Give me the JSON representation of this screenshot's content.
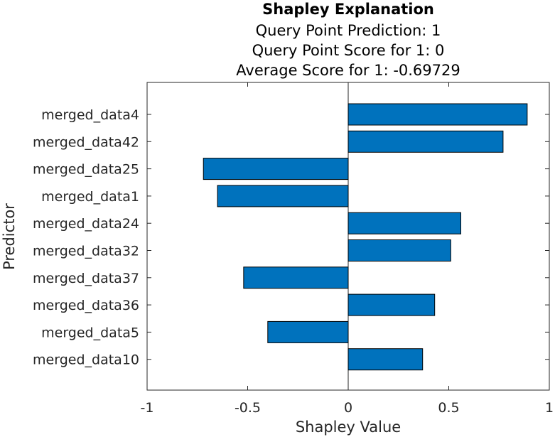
{
  "chart_data": {
    "type": "bar",
    "orientation": "horizontal",
    "title": "Shapley Explanation",
    "subtitle_lines": [
      "Query Point Prediction: 1",
      "Query Point Score for 1: 0",
      "Average Score for 1: -0.69729"
    ],
    "xlabel": "Shapley Value",
    "ylabel": "Predictor",
    "xlim": [
      -1,
      1
    ],
    "xticks": [
      "-1",
      "-0.5",
      "0",
      "0.5",
      "1"
    ],
    "xtick_values": [
      -1,
      -0.5,
      0,
      0.5,
      1
    ],
    "categories": [
      "merged_data4",
      "merged_data42",
      "merged_data25",
      "merged_data1",
      "merged_data24",
      "merged_data32",
      "merged_data37",
      "merged_data36",
      "merged_data5",
      "merged_data10"
    ],
    "values": [
      0.89,
      0.77,
      -0.72,
      -0.65,
      0.56,
      0.51,
      -0.52,
      0.43,
      -0.4,
      0.37
    ],
    "bar_color": "#0072BD",
    "grid": false,
    "legend": "none"
  }
}
